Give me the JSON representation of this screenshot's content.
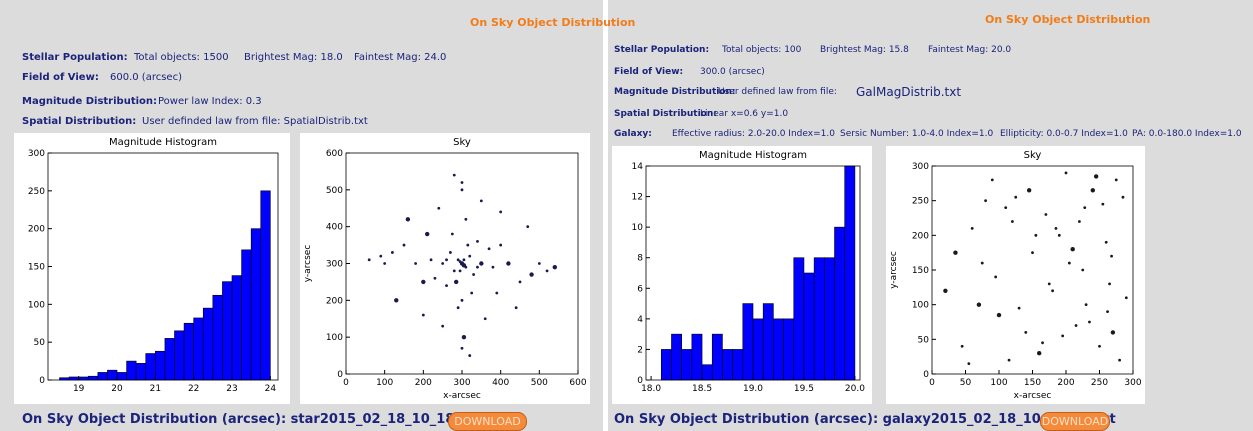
{
  "panels": [
    {
      "title": "On Sky Object Distribution",
      "info": [
        {
          "label": "Stellar Population:",
          "items": [
            "Total objects: 1500",
            "Brightest Mag: 18.0",
            "Faintest Mag: 24.0"
          ]
        },
        {
          "label": "Field of View:",
          "items": [
            "600.0 (arcsec)"
          ]
        },
        {
          "label": "Magnitude Distribution:",
          "items": [
            "Power law Index: 0.3"
          ]
        },
        {
          "label": "Spatial Distribution:",
          "items": [
            "User definded law from file: SpatialDistrib.txt"
          ]
        }
      ],
      "histogram": {
        "type": "histogram",
        "title": "Magnitude Histogram",
        "color": "#0000ff",
        "bins": [
          18.5,
          18.75,
          19,
          19.25,
          19.5,
          19.75,
          20,
          20.25,
          20.5,
          20.75,
          21,
          21.25,
          21.5,
          21.75,
          22,
          22.25,
          22.5,
          22.75,
          23,
          23.25,
          23.5,
          23.75,
          24
        ],
        "counts": [
          3,
          4,
          4,
          5,
          10,
          13,
          10,
          25,
          22,
          35,
          38,
          55,
          65,
          75,
          82,
          95,
          112,
          130,
          138,
          172,
          200,
          250
        ],
        "xlim": [
          18.2,
          24.2
        ],
        "xticks": [
          19,
          20,
          21,
          22,
          23,
          24
        ],
        "ylim": [
          0,
          300
        ],
        "yticks": [
          0,
          50,
          100,
          150,
          200,
          250,
          300
        ]
      },
      "sky": {
        "type": "scatter",
        "title": "Sky",
        "x_label": "x-arcsec",
        "y_label": "y-arcsec",
        "color": "#1a1a4e",
        "x": [
          300,
          290,
          310,
          280,
          320,
          305,
          295,
          270,
          330,
          315,
          285,
          260,
          340,
          300,
          250,
          350,
          275,
          325,
          220,
          380,
          200,
          400,
          310,
          290,
          180,
          420,
          240,
          360,
          150,
          450,
          130,
          470,
          100,
          500,
          300,
          305,
          230,
          370,
          260,
          340,
          160,
          440,
          90,
          520,
          300,
          210,
          390,
          280,
          320,
          60,
          540,
          300,
          250,
          350,
          120,
          480,
          295,
          305,
          200,
          400
        ],
        "y": [
          300,
          310,
          290,
          280,
          320,
          295,
          305,
          330,
          270,
          350,
          250,
          310,
          290,
          200,
          300,
          300,
          380,
          220,
          310,
          290,
          250,
          350,
          420,
          180,
          300,
          300,
          450,
          150,
          350,
          250,
          200,
          400,
          300,
          300,
          500,
          100,
          260,
          340,
          240,
          360,
          420,
          180,
          320,
          280,
          70,
          380,
          220,
          540,
          50,
          310,
          290,
          520,
          130,
          470,
          330,
          270,
          280,
          310,
          160,
          440
        ],
        "xlim": [
          0,
          600
        ],
        "xticks": [
          0,
          100,
          200,
          300,
          400,
          500,
          600
        ],
        "ylim": [
          0,
          600
        ],
        "yticks": [
          0,
          100,
          200,
          300,
          400,
          500,
          600
        ]
      },
      "footer": "On Sky Object Distribution (arcsec): star2015_02_18_10_18_48.txt",
      "button": "DOWNLOAD"
    },
    {
      "title": "On Sky Object Distribution",
      "info": [
        {
          "label": "Stellar Population:",
          "items": [
            "Total objects: 100",
            "Brightest Mag: 15.8",
            "Faintest Mag: 20.0"
          ]
        },
        {
          "label": "Field of View:",
          "items": [
            "300.0 (arcsec)"
          ]
        },
        {
          "label": "Magnitude Distribution:",
          "items": [
            "User defined law from file:",
            "GalMagDistrib.txt"
          ]
        },
        {
          "label": "Spatial Distribution:",
          "items": [
            "Linear x=0.6 y=1.0"
          ]
        },
        {
          "label": "Galaxy:",
          "items": [
            "Effective radius: 2.0-20.0 Index=1.0",
            "Sersic Number: 1.0-4.0 Index=1.0",
            "Ellipticity: 0.0-0.7 Index=1.0",
            "PA: 0.0-180.0 Index=1.0"
          ]
        }
      ],
      "histogram": {
        "type": "histogram",
        "title": "Magnitude Histogram",
        "color": "#0000ff",
        "bins": [
          18.1,
          18.2,
          18.3,
          18.4,
          18.5,
          18.6,
          18.7,
          18.8,
          18.9,
          19.0,
          19.1,
          19.2,
          19.3,
          19.4,
          19.5,
          19.6,
          19.7,
          19.8,
          19.9,
          20.0
        ],
        "counts": [
          2,
          3,
          2,
          3,
          1,
          3,
          2,
          2,
          5,
          4,
          5,
          4,
          4,
          8,
          7,
          8,
          8,
          10,
          14
        ],
        "xlim": [
          17.95,
          20.05
        ],
        "xticks": [
          {
            "value": 18,
            "label": "18.0"
          },
          18.5,
          {
            "value": 19,
            "label": "19.0"
          },
          19.5,
          {
            "value": 20,
            "label": "20.0"
          }
        ],
        "ylim": [
          0,
          14
        ],
        "yticks": [
          0,
          2,
          4,
          6,
          8,
          10,
          12,
          14
        ]
      },
      "sky": {
        "type": "scatter",
        "title": "Sky",
        "x_label": "x-arcsec",
        "y_label": "y-arcsec",
        "color": "#1a1a1a",
        "x": [
          20,
          45,
          60,
          75,
          90,
          100,
          110,
          125,
          140,
          150,
          160,
          170,
          180,
          190,
          200,
          210,
          215,
          220,
          225,
          230,
          240,
          250,
          255,
          260,
          265,
          270,
          275,
          280,
          285,
          290,
          35,
          55,
          80,
          95,
          130,
          145,
          165,
          185,
          205,
          235,
          245,
          268,
          120,
          175,
          195,
          70,
          115,
          155,
          228,
          262
        ],
        "y": [
          120,
          40,
          210,
          160,
          280,
          85,
          240,
          255,
          60,
          175,
          30,
          230,
          120,
          200,
          290,
          180,
          70,
          220,
          150,
          100,
          265,
          40,
          245,
          190,
          130,
          60,
          280,
          20,
          255,
          110,
          175,
          15,
          250,
          140,
          95,
          265,
          45,
          210,
          160,
          75,
          285,
          170,
          220,
          130,
          55,
          100,
          20,
          200,
          240,
          90
        ],
        "xlim": [
          0,
          300
        ],
        "xticks": [
          0,
          50,
          100,
          150,
          200,
          250,
          300
        ],
        "ylim": [
          0,
          300
        ],
        "yticks": [
          0,
          50,
          100,
          150,
          200,
          250,
          300
        ]
      },
      "footer": "On Sky Object Distribution (arcsec): galaxy2015_02_18_10_52_14.txt",
      "button": "DOWNLOAD"
    }
  ]
}
